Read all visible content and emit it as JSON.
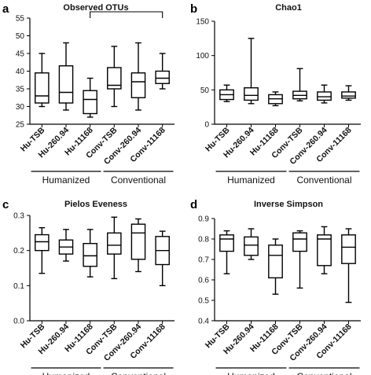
{
  "chart_data": [
    {
      "type": "box",
      "panel_label": "a",
      "title": "Observed OTUs",
      "categories": [
        "Hu-TSB",
        "Hu-260.94",
        "Hu-11168",
        "Conv-TSB",
        "Conv-260.94",
        "Conv-11168"
      ],
      "groups": [
        {
          "name": "Humanized",
          "categories": [
            0,
            1,
            2
          ]
        },
        {
          "name": "Conventional",
          "categories": [
            3,
            4,
            5
          ]
        }
      ],
      "ylim": [
        25,
        55
      ],
      "yticks": [
        25,
        30,
        35,
        40,
        45,
        50,
        55
      ],
      "boxes": [
        {
          "min": 30,
          "q1": 31,
          "median": 33,
          "q3": 39.5,
          "max": 45
        },
        {
          "min": 29,
          "q1": 31,
          "median": 34,
          "q3": 41.5,
          "max": 48
        },
        {
          "min": 27,
          "q1": 28,
          "median": 32,
          "q3": 34.5,
          "max": 38
        },
        {
          "min": 30,
          "q1": 35,
          "median": 36,
          "q3": 41,
          "max": 47
        },
        {
          "min": 29,
          "q1": 32.5,
          "median": 37,
          "q3": 39.5,
          "max": 48
        },
        {
          "min": 35,
          "q1": 36.5,
          "median": 38,
          "q3": 40,
          "max": 45
        }
      ],
      "significance_bracket": {
        "from": 2,
        "to": 5
      }
    },
    {
      "type": "box",
      "panel_label": "b",
      "title": "Chao1",
      "categories": [
        "Hu-TSB",
        "Hu-260.94",
        "Hu-11168",
        "Conv-TSB",
        "Conv-260.94",
        "Conv-11168"
      ],
      "groups": [
        {
          "name": "Humanized",
          "categories": [
            0,
            1,
            2
          ]
        },
        {
          "name": "Conventional",
          "categories": [
            3,
            4,
            5
          ]
        }
      ],
      "ylim": [
        0,
        150
      ],
      "yticks": [
        0,
        50,
        100,
        150
      ],
      "boxes": [
        {
          "min": 33,
          "q1": 36,
          "median": 43,
          "q3": 50,
          "max": 57
        },
        {
          "min": 30,
          "q1": 35,
          "median": 42,
          "q3": 53,
          "max": 125
        },
        {
          "min": 27,
          "q1": 30,
          "median": 37,
          "q3": 43,
          "max": 47
        },
        {
          "min": 34,
          "q1": 37,
          "median": 42,
          "q3": 48,
          "max": 81
        },
        {
          "min": 31,
          "q1": 35,
          "median": 40,
          "q3": 47,
          "max": 57
        },
        {
          "min": 35,
          "q1": 38,
          "median": 41,
          "q3": 47,
          "max": 56
        }
      ]
    },
    {
      "type": "box",
      "panel_label": "c",
      "title": "Pielos Eveness",
      "categories": [
        "Hu-TSB",
        "Hu-260.94",
        "Hu-11168",
        "Conv-TSB",
        "Conv-260.94",
        "Conv-11168"
      ],
      "groups": [
        {
          "name": "Humanized",
          "categories": [
            0,
            1,
            2
          ]
        },
        {
          "name": "Conventional",
          "categories": [
            3,
            4,
            5
          ]
        }
      ],
      "ylim": [
        0.0,
        0.3
      ],
      "yticks": [
        0.0,
        0.1,
        0.2,
        0.3
      ],
      "ytick_labels": [
        "0.0",
        "0.1",
        "0.2",
        "0.3"
      ],
      "boxes": [
        {
          "min": 0.135,
          "q1": 0.2,
          "median": 0.225,
          "q3": 0.245,
          "max": 0.265
        },
        {
          "min": 0.17,
          "q1": 0.19,
          "median": 0.21,
          "q3": 0.23,
          "max": 0.26
        },
        {
          "min": 0.125,
          "q1": 0.155,
          "median": 0.185,
          "q3": 0.22,
          "max": 0.26
        },
        {
          "min": 0.12,
          "q1": 0.19,
          "median": 0.215,
          "q3": 0.25,
          "max": 0.295
        },
        {
          "min": 0.14,
          "q1": 0.175,
          "median": 0.25,
          "q3": 0.275,
          "max": 0.29
        },
        {
          "min": 0.1,
          "q1": 0.16,
          "median": 0.2,
          "q3": 0.24,
          "max": 0.255
        }
      ]
    },
    {
      "type": "box",
      "panel_label": "d",
      "title": "Inverse Simpson",
      "categories": [
        "Hu-TSB",
        "Hu-260.94",
        "Hu-11168",
        "Conv-TSB",
        "Conv-260.94",
        "Conv-11168"
      ],
      "groups": [
        {
          "name": "Humanized",
          "categories": [
            0,
            1,
            2
          ]
        },
        {
          "name": "Conventional",
          "categories": [
            3,
            4,
            5
          ]
        }
      ],
      "ylim": [
        0.4,
        0.9
      ],
      "yticks": [
        0.4,
        0.5,
        0.6,
        0.7,
        0.8,
        0.9
      ],
      "ytick_labels": [
        "0.4",
        "0.5",
        "0.6",
        "0.7",
        "0.8",
        "0.9"
      ],
      "boxes": [
        {
          "min": 0.63,
          "q1": 0.74,
          "median": 0.8,
          "q3": 0.82,
          "max": 0.84
        },
        {
          "min": 0.7,
          "q1": 0.72,
          "median": 0.77,
          "q3": 0.81,
          "max": 0.85
        },
        {
          "min": 0.53,
          "q1": 0.61,
          "median": 0.72,
          "q3": 0.77,
          "max": 0.8
        },
        {
          "min": 0.56,
          "q1": 0.74,
          "median": 0.8,
          "q3": 0.83,
          "max": 0.84
        },
        {
          "min": 0.63,
          "q1": 0.67,
          "median": 0.8,
          "q3": 0.82,
          "max": 0.86
        },
        {
          "min": 0.49,
          "q1": 0.68,
          "median": 0.76,
          "q3": 0.82,
          "max": 0.85
        }
      ]
    }
  ]
}
